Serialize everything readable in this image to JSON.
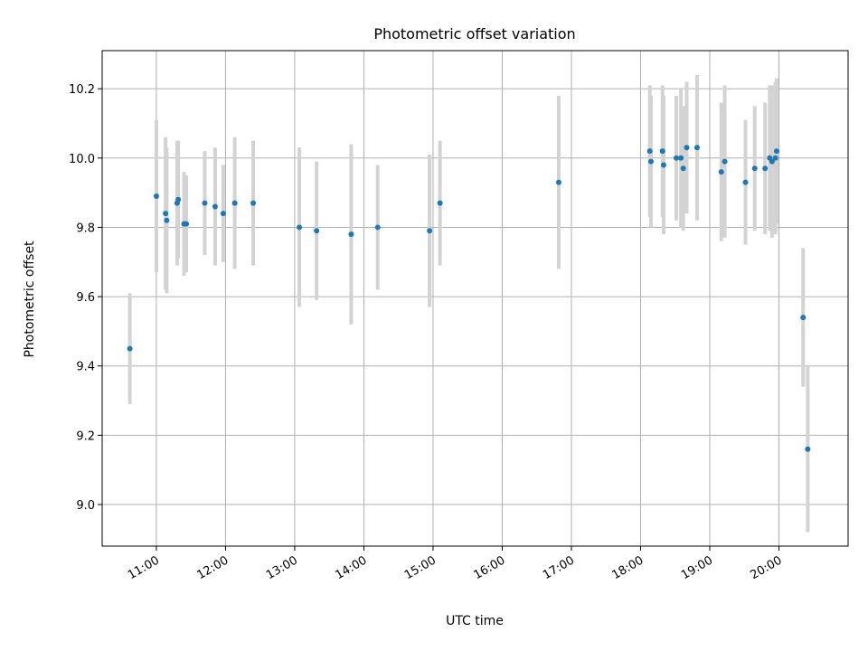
{
  "chart_data": {
    "type": "scatter",
    "title": "Photometric offset variation",
    "xlabel": "UTC time",
    "ylabel": "Photometric offset",
    "x_tick_labels": [
      "11:00",
      "12:00",
      "13:00",
      "14:00",
      "15:00",
      "16:00",
      "17:00",
      "18:00",
      "19:00",
      "20:00"
    ],
    "y_tick_values": [
      9.0,
      9.2,
      9.4,
      9.6,
      9.8,
      10.0,
      10.2
    ],
    "y_tick_labels": [
      "9.0",
      "9.2",
      "9.4",
      "9.6",
      "9.8",
      "10.0",
      "10.2"
    ],
    "xlim": [
      "10:13",
      "21:00"
    ],
    "ylim": [
      8.88,
      10.31
    ],
    "grid": true,
    "colors": {
      "marker": "#1f77b4",
      "errorbar": "#d3d3d3",
      "grid": "#b0b0b0"
    },
    "points": [
      {
        "t": "10:37",
        "y": 9.45,
        "yerr": 0.16
      },
      {
        "t": "11:00",
        "y": 9.89,
        "yerr": 0.22
      },
      {
        "t": "11:08",
        "y": 9.84,
        "yerr": 0.22
      },
      {
        "t": "11:09",
        "y": 9.82,
        "yerr": 0.21
      },
      {
        "t": "11:18",
        "y": 9.87,
        "yerr": 0.18
      },
      {
        "t": "11:19",
        "y": 9.88,
        "yerr": 0.17
      },
      {
        "t": "11:24",
        "y": 9.81,
        "yerr": 0.15
      },
      {
        "t": "11:26",
        "y": 9.81,
        "yerr": 0.14
      },
      {
        "t": "11:42",
        "y": 9.87,
        "yerr": 0.15
      },
      {
        "t": "11:51",
        "y": 9.86,
        "yerr": 0.17
      },
      {
        "t": "11:58",
        "y": 9.84,
        "yerr": 0.14
      },
      {
        "t": "12:08",
        "y": 9.87,
        "yerr": 0.19
      },
      {
        "t": "12:24",
        "y": 9.87,
        "yerr": 0.18
      },
      {
        "t": "13:04",
        "y": 9.8,
        "yerr": 0.23
      },
      {
        "t": "13:19",
        "y": 9.79,
        "yerr": 0.2
      },
      {
        "t": "13:49",
        "y": 9.78,
        "yerr": 0.26
      },
      {
        "t": "14:12",
        "y": 9.8,
        "yerr": 0.18
      },
      {
        "t": "14:57",
        "y": 9.79,
        "yerr": 0.22
      },
      {
        "t": "15:06",
        "y": 9.87,
        "yerr": 0.18
      },
      {
        "t": "16:49",
        "y": 9.93,
        "yerr": 0.25
      },
      {
        "t": "18:08",
        "y": 10.02,
        "yerr": 0.19
      },
      {
        "t": "18:09",
        "y": 9.99,
        "yerr": 0.19
      },
      {
        "t": "18:19",
        "y": 10.02,
        "yerr": 0.19
      },
      {
        "t": "18:20",
        "y": 9.98,
        "yerr": 0.2
      },
      {
        "t": "18:31",
        "y": 10.0,
        "yerr": 0.18
      },
      {
        "t": "18:35",
        "y": 10.0,
        "yerr": 0.2
      },
      {
        "t": "18:37",
        "y": 9.97,
        "yerr": 0.18
      },
      {
        "t": "18:40",
        "y": 10.03,
        "yerr": 0.19
      },
      {
        "t": "18:49",
        "y": 10.03,
        "yerr": 0.21
      },
      {
        "t": "19:10",
        "y": 9.96,
        "yerr": 0.2
      },
      {
        "t": "19:13",
        "y": 9.99,
        "yerr": 0.22
      },
      {
        "t": "19:31",
        "y": 9.93,
        "yerr": 0.18
      },
      {
        "t": "19:39",
        "y": 9.97,
        "yerr": 0.18
      },
      {
        "t": "19:48",
        "y": 9.97,
        "yerr": 0.19
      },
      {
        "t": "19:52",
        "y": 10.0,
        "yerr": 0.21
      },
      {
        "t": "19:54",
        "y": 9.99,
        "yerr": 0.22
      },
      {
        "t": "19:57",
        "y": 10.0,
        "yerr": 0.22
      },
      {
        "t": "19:58",
        "y": 10.02,
        "yerr": 0.21
      },
      {
        "t": "20:21",
        "y": 9.54,
        "yerr": 0.2
      },
      {
        "t": "20:25",
        "y": 9.16,
        "yerr": 0.24
      }
    ]
  }
}
